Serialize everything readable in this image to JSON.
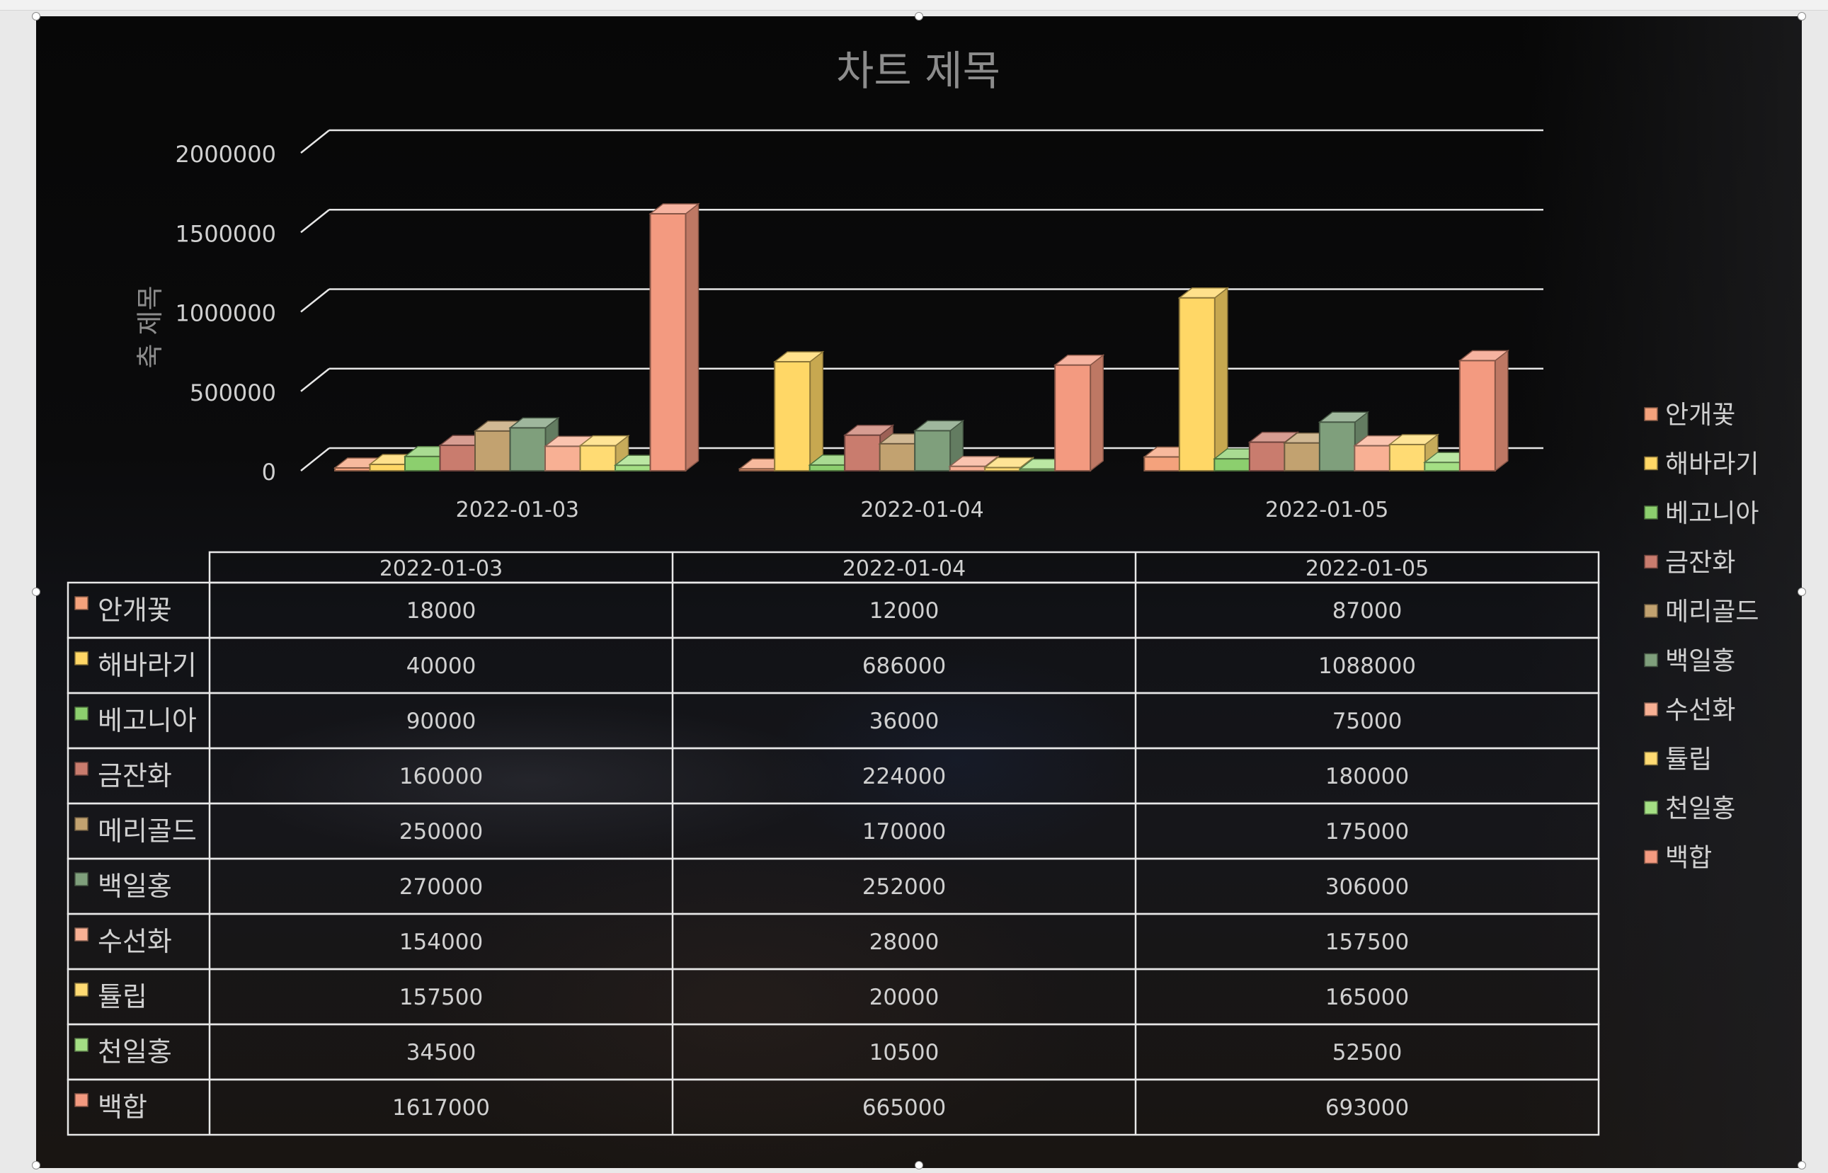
{
  "chart_data": {
    "type": "bar",
    "style": "3d-clustered-column-with-data-table",
    "title": "차트 제목",
    "xlabel": "",
    "ylabel": "축 제목",
    "ylim": [
      0,
      2000000
    ],
    "y_ticks": [
      "0",
      "500000",
      "1000000",
      "1500000",
      "2000000"
    ],
    "grid": true,
    "legend_position": "right",
    "categories": [
      "2022-01-03",
      "2022-01-04",
      "2022-01-05"
    ],
    "series": [
      {
        "name": "안개꽃",
        "color": "#f4a27c",
        "values": [
          18000,
          12000,
          87000
        ]
      },
      {
        "name": "해바라기",
        "color": "#ffd766",
        "values": [
          40000,
          686000,
          1088000
        ]
      },
      {
        "name": "베고니아",
        "color": "#8ccf6e",
        "values": [
          90000,
          36000,
          75000
        ]
      },
      {
        "name": "금잔화",
        "color": "#c97c6e",
        "values": [
          160000,
          224000,
          180000
        ]
      },
      {
        "name": "메리골드",
        "color": "#c2a270",
        "values": [
          250000,
          170000,
          175000
        ]
      },
      {
        "name": "백일홍",
        "color": "#7f9f7c",
        "values": [
          270000,
          252000,
          306000
        ]
      },
      {
        "name": "수선화",
        "color": "#f8b094",
        "values": [
          154000,
          28000,
          157500
        ]
      },
      {
        "name": "튤립",
        "color": "#ffdb73",
        "values": [
          157500,
          20000,
          165000
        ]
      },
      {
        "name": "천일홍",
        "color": "#a4df84",
        "values": [
          34500,
          10500,
          52500
        ]
      },
      {
        "name": "백합",
        "color": "#f39a80",
        "values": [
          1617000,
          665000,
          693000
        ]
      }
    ],
    "data_table": true
  },
  "colors": {
    "gridline": "#e6e6e6",
    "axis_text": "#d0d0d0",
    "title_text": "#8c8c8c"
  }
}
